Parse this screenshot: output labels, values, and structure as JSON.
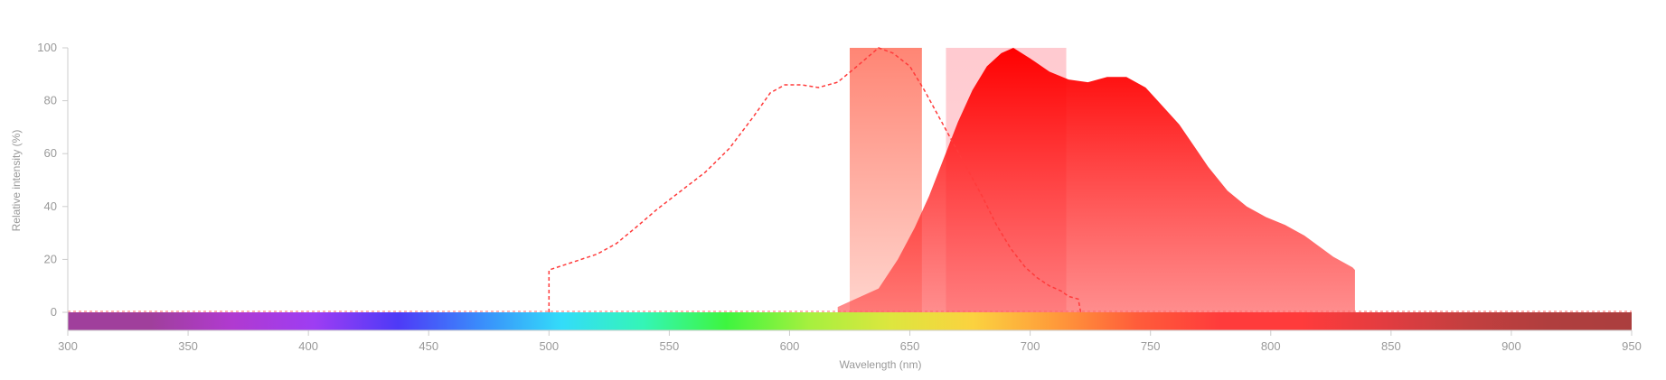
{
  "chart_data": {
    "type": "area",
    "title": "",
    "xlabel": "Wavelength (nm)",
    "ylabel": "Relative intensity (%)",
    "xlim": [
      300,
      950
    ],
    "ylim": [
      0,
      100
    ],
    "x_ticks": [
      "300",
      "350",
      "400",
      "450",
      "500",
      "550",
      "600",
      "650",
      "700",
      "750",
      "800",
      "850",
      "900",
      "950"
    ],
    "y_ticks": [
      "0",
      "20",
      "40",
      "60",
      "80",
      "100"
    ],
    "grid": false,
    "legend": "none",
    "series": [
      {
        "kind": "excitation-dashed",
        "color": "#ff3b3b",
        "points": [
          [
            500,
            0
          ],
          [
            500,
            16
          ],
          [
            510,
            19
          ],
          [
            520,
            22
          ],
          [
            528,
            26
          ],
          [
            536,
            32
          ],
          [
            545,
            39
          ],
          [
            555,
            46
          ],
          [
            565,
            53
          ],
          [
            575,
            62
          ],
          [
            585,
            74
          ],
          [
            592,
            83
          ],
          [
            598,
            86
          ],
          [
            605,
            86
          ],
          [
            612,
            85
          ],
          [
            620,
            87
          ],
          [
            628,
            93
          ],
          [
            637,
            100
          ],
          [
            643,
            98
          ],
          [
            650,
            93
          ],
          [
            656,
            84
          ],
          [
            662,
            74
          ],
          [
            668,
            64
          ],
          [
            674,
            54
          ],
          [
            680,
            44
          ],
          [
            686,
            33
          ],
          [
            692,
            24
          ],
          [
            698,
            17
          ],
          [
            703,
            13
          ],
          [
            708,
            10
          ],
          [
            713,
            8
          ],
          [
            716,
            6
          ],
          [
            720,
            5
          ],
          [
            721,
            0
          ]
        ]
      },
      {
        "kind": "emission-filled",
        "color": "#ff1a1a",
        "points": [
          [
            620,
            2
          ],
          [
            637,
            9
          ],
          [
            645,
            20
          ],
          [
            652,
            32
          ],
          [
            658,
            44
          ],
          [
            664,
            58
          ],
          [
            670,
            72
          ],
          [
            676,
            84
          ],
          [
            682,
            93
          ],
          [
            688,
            98
          ],
          [
            693,
            100
          ],
          [
            700,
            96
          ],
          [
            708,
            91
          ],
          [
            716,
            88
          ],
          [
            724,
            87
          ],
          [
            732,
            89
          ],
          [
            740,
            89
          ],
          [
            748,
            85
          ],
          [
            754,
            79
          ],
          [
            762,
            71
          ],
          [
            768,
            63
          ],
          [
            774,
            55
          ],
          [
            782,
            46
          ],
          [
            790,
            40
          ],
          [
            798,
            36
          ],
          [
            806,
            33
          ],
          [
            814,
            29
          ],
          [
            820,
            25
          ],
          [
            826,
            21
          ],
          [
            830,
            19
          ],
          [
            834,
            17
          ],
          [
            835,
            16
          ],
          [
            835,
            0
          ]
        ]
      }
    ],
    "filter_bands": [
      {
        "from": 625,
        "to": 655,
        "color": "#ff8a78"
      },
      {
        "from": 665,
        "to": 715,
        "color": "#ffb0b8"
      }
    ],
    "spectrum_bar_colors": [
      "#a03f9c",
      "#a03f9c",
      "#b03ad0",
      "#9d3df3",
      "#4e3af7",
      "#3a8bfb",
      "#33dcf9",
      "#34f5b6",
      "#3ef53f",
      "#a6f03e",
      "#dde63e",
      "#fbd23f",
      "#ff9a3a",
      "#ff5c3a",
      "#ff3b3b",
      "#ff3b3b",
      "#e23c40",
      "#c33f3f",
      "#b03e3e",
      "#ab3e3e"
    ]
  }
}
